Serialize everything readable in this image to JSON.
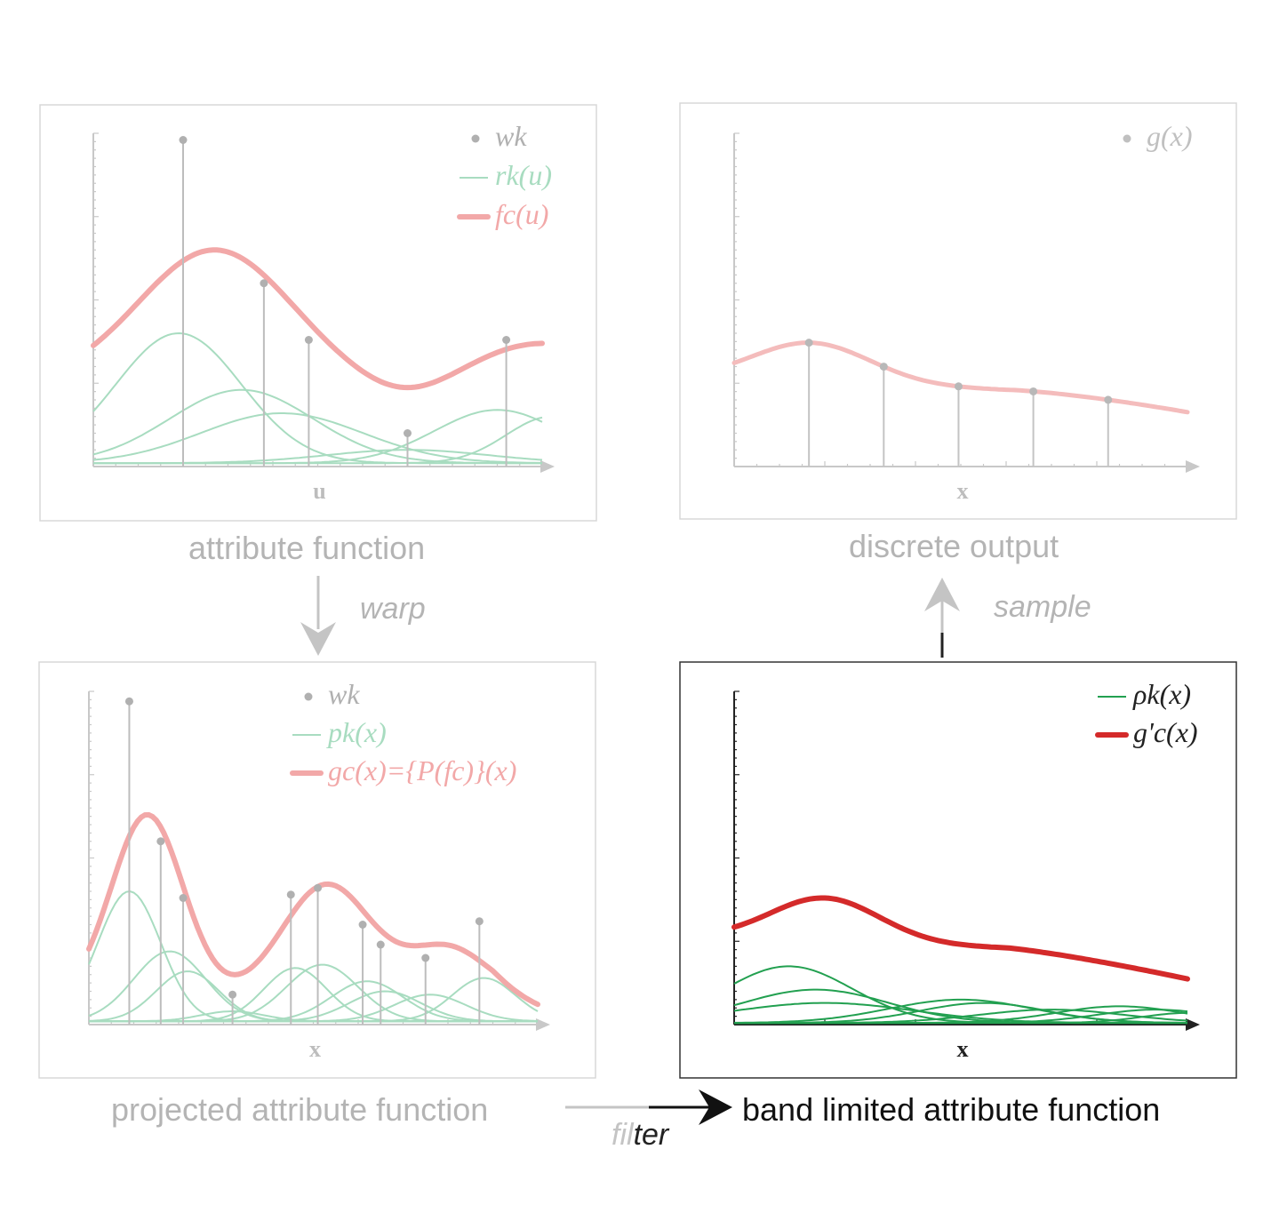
{
  "panels": {
    "attribute": {
      "caption": "attribute function",
      "axis_label": "u",
      "legend": [
        {
          "symbol": "dot",
          "text": "wk",
          "color": "#b0b0b0"
        },
        {
          "symbol": "thin",
          "text": "rk(u)",
          "color": "#a8dcc0"
        },
        {
          "symbol": "thick",
          "text": "fc(u)",
          "color": "#f2a8a8"
        }
      ],
      "stems": [
        0.2,
        0.38,
        0.48,
        0.7,
        0.92
      ],
      "stem_heights": [
        0.98,
        0.55,
        0.38,
        0.1,
        0.38
      ]
    },
    "discrete": {
      "caption": "discrete output",
      "axis_label": "x",
      "legend": [
        {
          "symbol": "dot",
          "text": "g(x)",
          "color": "#c0c0c0"
        }
      ]
    },
    "projected": {
      "caption": "projected attribute function",
      "axis_label": "x",
      "legend": [
        {
          "symbol": "dot",
          "text": "wk",
          "color": "#b0b0b0"
        },
        {
          "symbol": "thin",
          "text": "pk(x)",
          "color": "#a8dcc0"
        },
        {
          "symbol": "thick",
          "text": "gc(x)={P(fc)}(x)",
          "color": "#f2a8a8"
        }
      ]
    },
    "bandlimited": {
      "caption": "band limited attribute function",
      "axis_label": "x",
      "legend": [
        {
          "symbol": "thin",
          "text": "ρk(x)",
          "color": "#22a050"
        },
        {
          "symbol": "thick",
          "text": "g'c(x)",
          "color": "#d42a2a"
        }
      ]
    }
  },
  "arrows": {
    "warp": "warp",
    "sample": "sample",
    "filter": "filter"
  }
}
